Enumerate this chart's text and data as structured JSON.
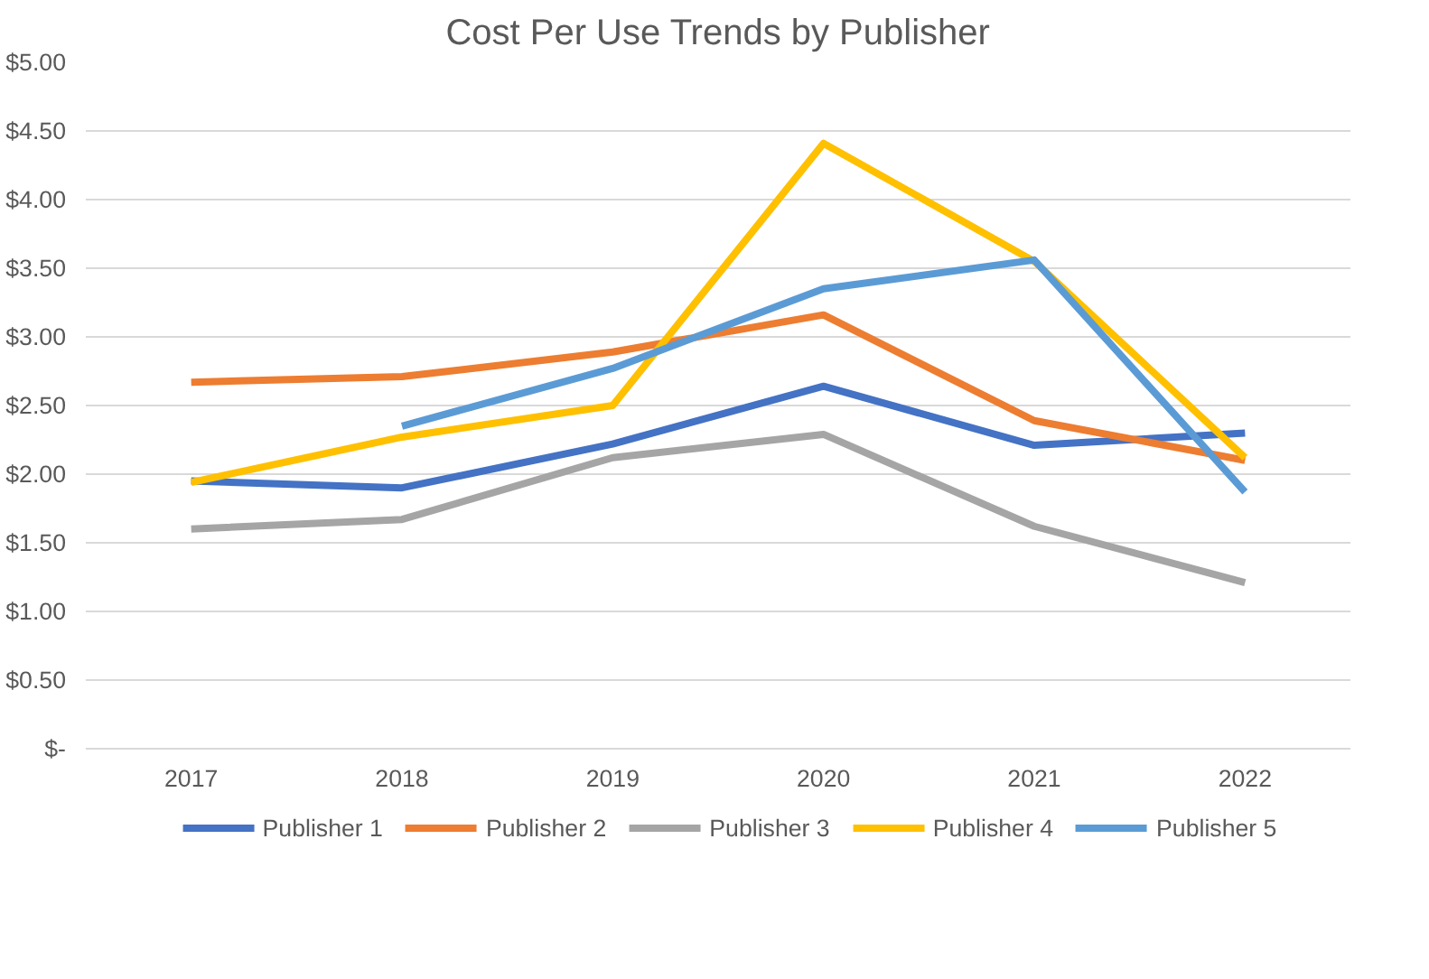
{
  "chart_data": {
    "type": "line",
    "title": "Cost Per Use Trends by Publisher",
    "categories": [
      "2017",
      "2018",
      "2019",
      "2020",
      "2021",
      "2022"
    ],
    "ylim": [
      0,
      5
    ],
    "yticks": [
      {
        "value": 0,
        "label": "$-"
      },
      {
        "value": 0.5,
        "label": "$0.50"
      },
      {
        "value": 1,
        "label": "$1.00"
      },
      {
        "value": 1.5,
        "label": "$1.50"
      },
      {
        "value": 2,
        "label": "$2.00"
      },
      {
        "value": 2.5,
        "label": "$2.50"
      },
      {
        "value": 3,
        "label": "$3.00"
      },
      {
        "value": 3.5,
        "label": "$3.50"
      },
      {
        "value": 4,
        "label": "$4.00"
      },
      {
        "value": 4.5,
        "label": "$4.50"
      },
      {
        "value": 5,
        "label": "$5.00"
      }
    ],
    "grid": "y",
    "legend": "bottom",
    "marker": "none",
    "line_style": "solid",
    "series": [
      {
        "name": "Publisher 1",
        "color": "#4472c4",
        "values": [
          1.95,
          1.9,
          2.22,
          2.64,
          2.21,
          2.3
        ]
      },
      {
        "name": "Publisher 2",
        "color": "#ed7d31",
        "values": [
          2.67,
          2.71,
          2.89,
          3.16,
          2.39,
          2.1
        ]
      },
      {
        "name": "Publisher 3",
        "color": "#a5a5a5",
        "values": [
          1.6,
          1.67,
          2.12,
          2.29,
          1.62,
          1.21
        ]
      },
      {
        "name": "Publisher 4",
        "color": "#ffc000",
        "values": [
          1.94,
          2.27,
          2.5,
          4.41,
          3.55,
          2.12
        ]
      },
      {
        "name": "Publisher 5",
        "color": "#5b9bd5",
        "values": [
          null,
          2.35,
          2.77,
          3.35,
          3.56,
          1.87
        ]
      }
    ]
  }
}
